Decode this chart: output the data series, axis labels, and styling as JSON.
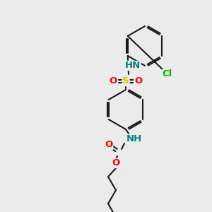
{
  "bg_color": "#ebebeb",
  "bond_color": "#1a1a1a",
  "bond_lw": 1.5,
  "colors": {
    "N": "#008080",
    "O": "#ff0000",
    "S": "#cccc00",
    "Cl": "#00bb00",
    "C": "#1a1a1a"
  },
  "label_fontsize": 9.5,
  "label_fontsize_small": 8.5
}
